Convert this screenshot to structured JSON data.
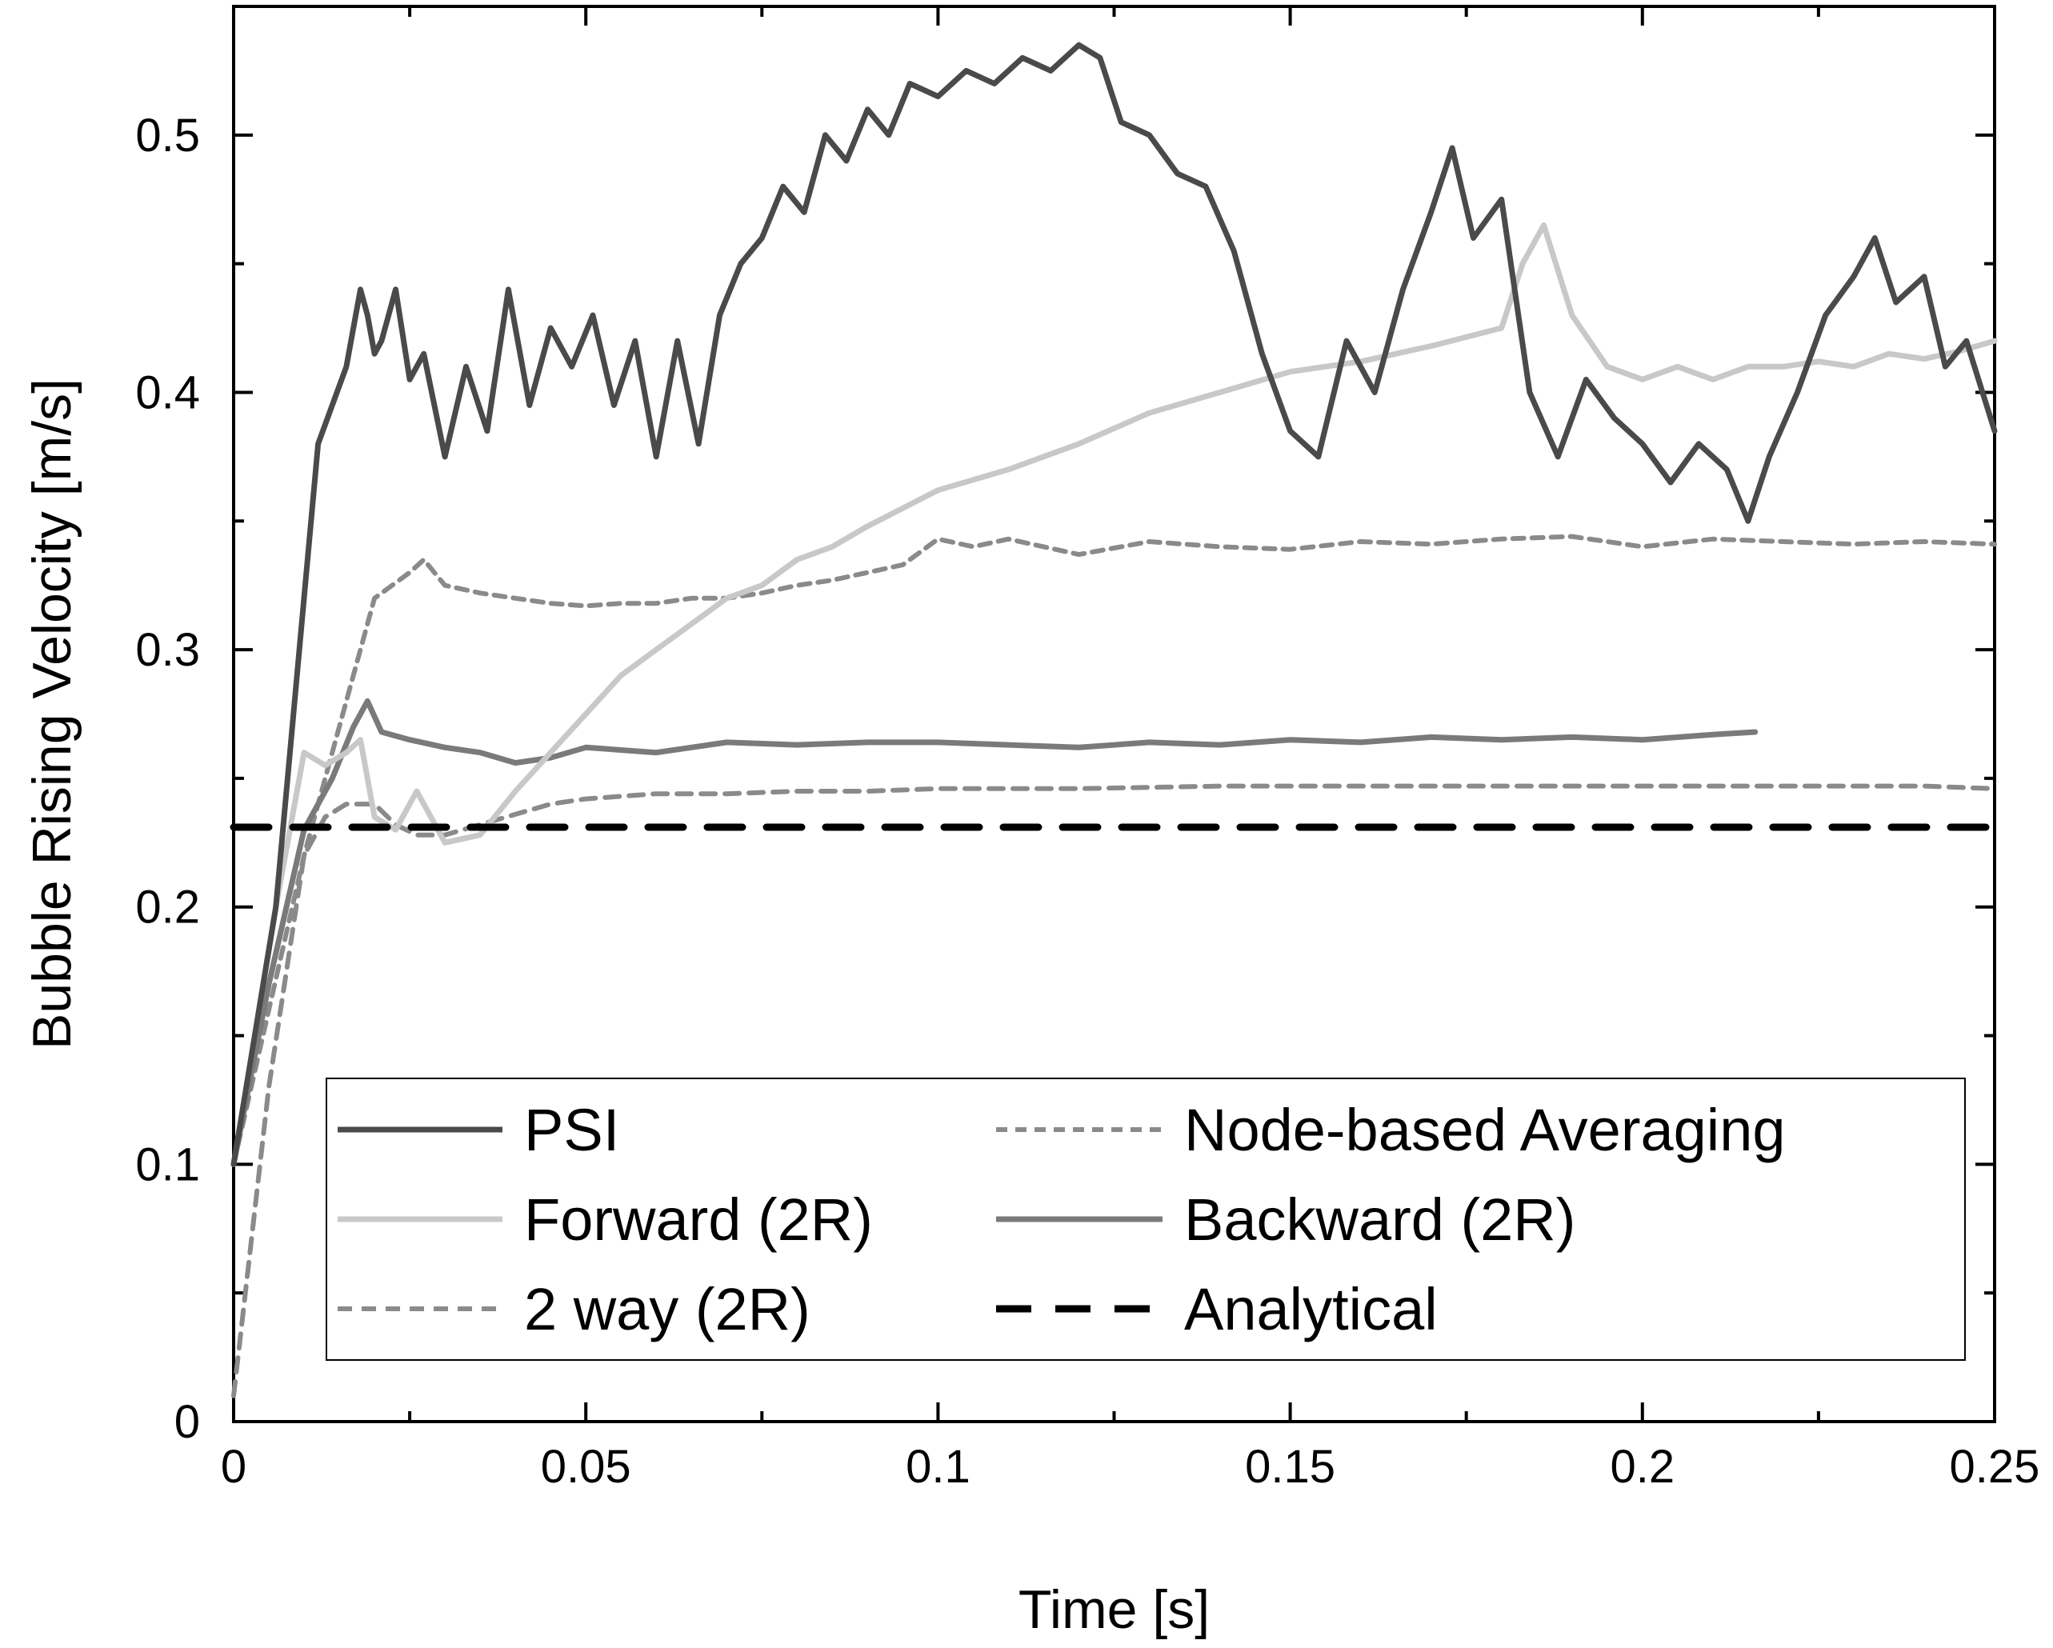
{
  "chart_data": {
    "type": "line",
    "title": "",
    "xlabel": "Time [s]",
    "ylabel": "Bubble Rising Velocity [m/s]",
    "xlim": [
      0,
      0.25
    ],
    "ylim": [
      0,
      0.55
    ],
    "xticks": [
      0,
      0.05,
      0.1,
      0.15,
      0.2,
      0.25
    ],
    "xtick_labels": [
      "0",
      "0.05",
      "0.1",
      "0.15",
      "0.2",
      "0.25"
    ],
    "yticks": [
      0,
      0.1,
      0.2,
      0.3,
      0.4,
      0.5
    ],
    "ytick_labels": [
      "0",
      "0.1",
      "0.2",
      "0.3",
      "0.4",
      "0.5"
    ],
    "grid": false,
    "legend_position": "bottom",
    "series": [
      {
        "name": "PSI",
        "color": "#4a4a4a",
        "dash": "solid",
        "x": [
          0,
          0.006,
          0.012,
          0.016,
          0.018,
          0.019,
          0.02,
          0.021,
          0.022,
          0.023,
          0.025,
          0.027,
          0.03,
          0.033,
          0.036,
          0.039,
          0.042,
          0.045,
          0.048,
          0.051,
          0.054,
          0.057,
          0.06,
          0.063,
          0.066,
          0.069,
          0.072,
          0.075,
          0.078,
          0.081,
          0.084,
          0.087,
          0.09,
          0.093,
          0.096,
          0.1,
          0.104,
          0.108,
          0.112,
          0.116,
          0.12,
          0.123,
          0.126,
          0.13,
          0.134,
          0.138,
          0.142,
          0.146,
          0.15,
          0.154,
          0.158,
          0.162,
          0.166,
          0.17,
          0.173,
          0.176,
          0.18,
          0.184,
          0.188,
          0.192,
          0.196,
          0.2,
          0.204,
          0.208,
          0.212,
          0.215,
          0.218,
          0.222,
          0.226,
          0.23,
          0.233,
          0.236,
          0.24,
          0.243,
          0.246,
          0.25
        ],
        "y": [
          0.1,
          0.2,
          0.38,
          0.41,
          0.44,
          0.43,
          0.415,
          0.42,
          0.43,
          0.44,
          0.405,
          0.415,
          0.375,
          0.41,
          0.385,
          0.44,
          0.395,
          0.425,
          0.41,
          0.43,
          0.395,
          0.42,
          0.375,
          0.42,
          0.38,
          0.43,
          0.45,
          0.46,
          0.48,
          0.47,
          0.5,
          0.49,
          0.51,
          0.5,
          0.52,
          0.515,
          0.525,
          0.52,
          0.53,
          0.525,
          0.535,
          0.53,
          0.505,
          0.5,
          0.485,
          0.48,
          0.455,
          0.415,
          0.385,
          0.375,
          0.42,
          0.4,
          0.44,
          0.47,
          0.495,
          0.46,
          0.475,
          0.4,
          0.375,
          0.405,
          0.39,
          0.38,
          0.365,
          0.38,
          0.37,
          0.35,
          0.375,
          0.4,
          0.43,
          0.445,
          0.46,
          0.435,
          0.445,
          0.41,
          0.42,
          0.385
        ]
      },
      {
        "name": "Node-based Averaging",
        "color": "#8a8a8a",
        "dash": "dotted",
        "x": [
          0,
          0.01,
          0.02,
          0.025,
          0.027,
          0.03,
          0.035,
          0.04,
          0.045,
          0.05,
          0.055,
          0.06,
          0.065,
          0.07,
          0.075,
          0.08,
          0.085,
          0.09,
          0.095,
          0.1,
          0.105,
          0.11,
          0.12,
          0.13,
          0.14,
          0.15,
          0.16,
          0.17,
          0.18,
          0.19,
          0.2,
          0.21,
          0.22,
          0.23,
          0.24,
          0.25
        ],
        "y": [
          0.1,
          0.22,
          0.32,
          0.33,
          0.335,
          0.325,
          0.322,
          0.32,
          0.318,
          0.317,
          0.318,
          0.318,
          0.32,
          0.32,
          0.322,
          0.325,
          0.327,
          0.33,
          0.333,
          0.343,
          0.34,
          0.343,
          0.337,
          0.342,
          0.34,
          0.339,
          0.342,
          0.341,
          0.343,
          0.344,
          0.34,
          0.343,
          0.342,
          0.341,
          0.342,
          0.341
        ]
      },
      {
        "name": "Forward (2R)",
        "color": "#c8c8c8",
        "dash": "solid",
        "x": [
          0,
          0.006,
          0.01,
          0.013,
          0.016,
          0.018,
          0.02,
          0.023,
          0.026,
          0.03,
          0.035,
          0.04,
          0.045,
          0.05,
          0.055,
          0.06,
          0.065,
          0.07,
          0.075,
          0.08,
          0.085,
          0.09,
          0.095,
          0.1,
          0.11,
          0.12,
          0.13,
          0.14,
          0.15,
          0.16,
          0.17,
          0.18,
          0.183,
          0.186,
          0.19,
          0.195,
          0.2,
          0.205,
          0.21,
          0.215,
          0.22,
          0.225,
          0.23,
          0.235,
          0.24,
          0.245,
          0.25
        ],
        "y": [
          0.1,
          0.2,
          0.26,
          0.255,
          0.26,
          0.265,
          0.235,
          0.23,
          0.245,
          0.225,
          0.228,
          0.245,
          0.26,
          0.275,
          0.29,
          0.3,
          0.31,
          0.32,
          0.325,
          0.335,
          0.34,
          0.348,
          0.355,
          0.362,
          0.37,
          0.38,
          0.392,
          0.4,
          0.408,
          0.412,
          0.418,
          0.425,
          0.45,
          0.465,
          0.43,
          0.41,
          0.405,
          0.41,
          0.405,
          0.41,
          0.41,
          0.412,
          0.41,
          0.415,
          0.413,
          0.416,
          0.42
        ]
      },
      {
        "name": "Backward (2R)",
        "color": "#7a7a7a",
        "dash": "solid",
        "x": [
          0,
          0.005,
          0.01,
          0.014,
          0.017,
          0.019,
          0.021,
          0.025,
          0.03,
          0.035,
          0.04,
          0.045,
          0.05,
          0.06,
          0.07,
          0.08,
          0.09,
          0.1,
          0.11,
          0.12,
          0.13,
          0.14,
          0.15,
          0.16,
          0.17,
          0.18,
          0.19,
          0.2,
          0.21,
          0.216
        ],
        "y": [
          0.1,
          0.17,
          0.23,
          0.25,
          0.27,
          0.28,
          0.268,
          0.265,
          0.262,
          0.26,
          0.256,
          0.258,
          0.262,
          0.26,
          0.264,
          0.263,
          0.264,
          0.264,
          0.263,
          0.262,
          0.264,
          0.263,
          0.265,
          0.264,
          0.266,
          0.265,
          0.266,
          0.265,
          0.267,
          0.268
        ]
      },
      {
        "name": "2 way (2R)",
        "color": "#8a8a8a",
        "dash": "dashed",
        "x": [
          0,
          0.005,
          0.01,
          0.013,
          0.016,
          0.02,
          0.023,
          0.026,
          0.03,
          0.035,
          0.04,
          0.045,
          0.05,
          0.055,
          0.06,
          0.07,
          0.08,
          0.09,
          0.1,
          0.12,
          0.14,
          0.16,
          0.18,
          0.2,
          0.22,
          0.24,
          0.25
        ],
        "y": [
          0.01,
          0.13,
          0.22,
          0.235,
          0.24,
          0.24,
          0.232,
          0.228,
          0.228,
          0.232,
          0.236,
          0.24,
          0.242,
          0.243,
          0.244,
          0.244,
          0.245,
          0.245,
          0.246,
          0.246,
          0.247,
          0.247,
          0.247,
          0.247,
          0.247,
          0.247,
          0.246
        ]
      },
      {
        "name": "Analytical",
        "color": "#000000",
        "dash": "longdash",
        "x": [
          0,
          0.25
        ],
        "y": [
          0.231,
          0.231
        ]
      }
    ]
  },
  "legend": {
    "entries": [
      {
        "label": "PSI",
        "series": 0
      },
      {
        "label": "Node-based Averaging",
        "series": 1
      },
      {
        "label": "Forward (2R)",
        "series": 2
      },
      {
        "label": "Backward (2R)",
        "series": 3
      },
      {
        "label": "2 way (2R)",
        "series": 4
      },
      {
        "label": "Analytical",
        "series": 5
      }
    ]
  }
}
